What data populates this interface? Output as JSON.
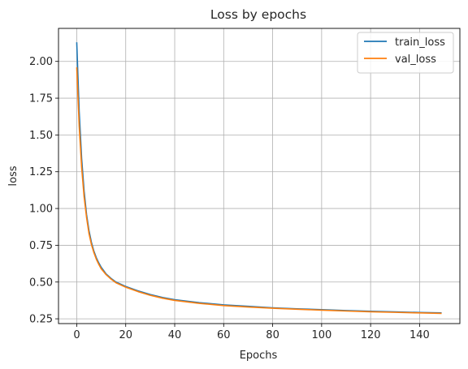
{
  "chart_data": {
    "type": "line",
    "title": "Loss by epochs",
    "xlabel": "Epochs",
    "ylabel": "loss",
    "xlim": [
      -7.45,
      156.45
    ],
    "ylim": [
      0.2175,
      2.2245
    ],
    "xticks": [
      0,
      20,
      40,
      60,
      80,
      100,
      120,
      140
    ],
    "yticks": [
      0.25,
      0.5,
      0.75,
      1.0,
      1.25,
      1.5,
      1.75,
      2.0
    ],
    "ytick_labels": [
      "0.25",
      "0.50",
      "0.75",
      "1.00",
      "1.25",
      "1.50",
      "1.75",
      "2.00"
    ],
    "xtick_labels": [
      "0",
      "20",
      "40",
      "60",
      "80",
      "100",
      "120",
      "140"
    ],
    "grid": true,
    "legend": "upper right",
    "x": [
      0,
      1,
      2,
      3,
      4,
      5,
      6,
      7,
      8,
      9,
      10,
      12,
      14,
      16,
      18,
      20,
      25,
      30,
      35,
      40,
      50,
      60,
      70,
      80,
      90,
      100,
      110,
      120,
      130,
      140,
      149
    ],
    "series": [
      {
        "name": "train_loss",
        "color": "#1f77b4",
        "values": [
          2.13,
          1.66,
          1.34,
          1.12,
          0.96,
          0.85,
          0.77,
          0.71,
          0.665,
          0.63,
          0.6,
          0.555,
          0.525,
          0.5,
          0.485,
          0.47,
          0.44,
          0.415,
          0.395,
          0.38,
          0.36,
          0.345,
          0.335,
          0.325,
          0.318,
          0.312,
          0.306,
          0.301,
          0.297,
          0.293,
          0.29
        ]
      },
      {
        "name": "val_loss",
        "color": "#ff7f0e",
        "values": [
          1.96,
          1.56,
          1.28,
          1.08,
          0.94,
          0.83,
          0.755,
          0.7,
          0.655,
          0.62,
          0.59,
          0.55,
          0.52,
          0.495,
          0.48,
          0.465,
          0.435,
          0.41,
          0.39,
          0.375,
          0.355,
          0.34,
          0.33,
          0.322,
          0.315,
          0.309,
          0.303,
          0.298,
          0.294,
          0.29,
          0.287
        ]
      }
    ]
  }
}
